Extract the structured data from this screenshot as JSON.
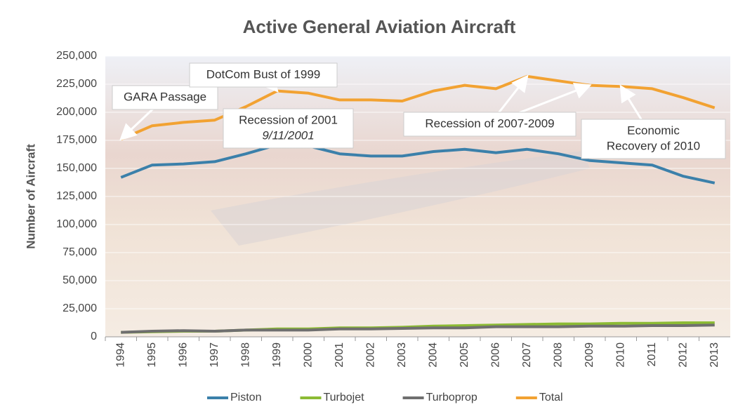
{
  "chart_data": {
    "type": "line",
    "title": "Active General Aviation Aircraft",
    "y_label": "Number of Aircraft",
    "categories": [
      "1994",
      "1995",
      "1996",
      "1997",
      "1998",
      "1999",
      "2000",
      "2001",
      "2002",
      "2003",
      "2004",
      "2005",
      "2006",
      "2007",
      "2008",
      "2009",
      "2010",
      "2011",
      "2012",
      "2013"
    ],
    "series": [
      {
        "name": "Piston",
        "color": "#3b80aa",
        "values": [
          142000,
          153000,
          154000,
          156000,
          163000,
          171000,
          170000,
          163000,
          161000,
          161000,
          165000,
          167000,
          164000,
          167000,
          163000,
          157000,
          155000,
          153000,
          143000,
          137000
        ]
      },
      {
        "name": "Turbojet",
        "color": "#8cbb34",
        "values": [
          4000,
          4500,
          5000,
          5000,
          6000,
          7000,
          7000,
          8000,
          8000,
          8500,
          9500,
          10000,
          10500,
          11000,
          11500,
          11500,
          12000,
          12000,
          12500,
          12500
        ]
      },
      {
        "name": "Turboprop",
        "color": "#6f6f6f",
        "values": [
          4000,
          5000,
          5500,
          5000,
          6000,
          6000,
          6000,
          7000,
          7000,
          7500,
          8000,
          8000,
          9000,
          9000,
          9000,
          9500,
          9500,
          10000,
          10000,
          10500
        ]
      },
      {
        "name": "Total",
        "color": "#f2a232",
        "values": [
          176000,
          188000,
          191000,
          193000,
          205000,
          219000,
          217000,
          211000,
          211000,
          210000,
          219000,
          224000,
          221000,
          232000,
          228000,
          224000,
          223000,
          221000,
          213000,
          204000
        ]
      }
    ],
    "ylim": [
      0,
      250000
    ],
    "yticks": [
      {
        "value": 0,
        "label": "0"
      },
      {
        "value": 25000,
        "label": "25,000"
      },
      {
        "value": 50000,
        "label": "50,000"
      },
      {
        "value": 75000,
        "label": "75,000"
      },
      {
        "value": 100000,
        "label": "100,000"
      },
      {
        "value": 125000,
        "label": "125,000"
      },
      {
        "value": 150000,
        "label": "150,000"
      },
      {
        "value": 175000,
        "label": "175,000"
      },
      {
        "value": 200000,
        "label": "200,000"
      },
      {
        "value": 225000,
        "label": "225,000"
      },
      {
        "value": 250000,
        "label": "250,000"
      }
    ],
    "grid": true,
    "legend": "bottom",
    "annotations": [
      {
        "lines": [
          "GARA Passage"
        ]
      },
      {
        "lines": [
          "DotCom Bust of 1999"
        ]
      },
      {
        "lines": [
          "Recession of 2001",
          "9/11/2001"
        ]
      },
      {
        "lines": [
          "Recession of 2007-2009"
        ]
      },
      {
        "lines": [
          "Economic",
          "Recovery of 2010"
        ]
      }
    ]
  }
}
